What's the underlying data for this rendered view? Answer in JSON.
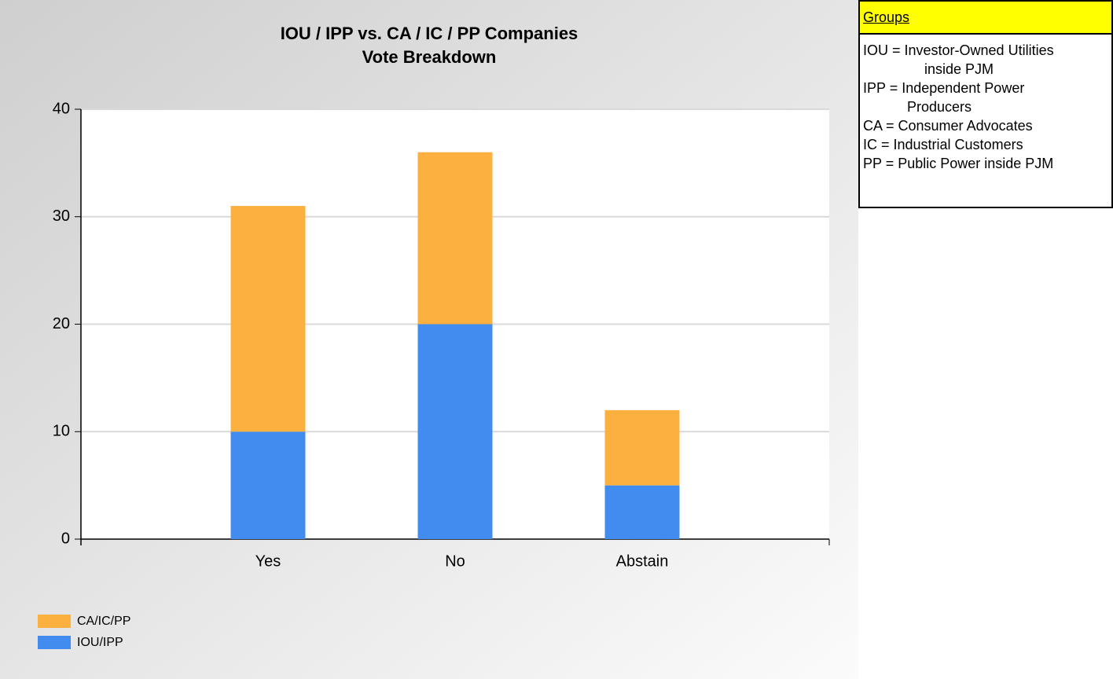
{
  "chart_data": {
    "type": "stacked_bar",
    "title": [
      "IOU / IPP vs. CA / IC / PP Companies",
      "Vote Breakdown"
    ],
    "categories": [
      "Yes",
      "No",
      "Abstain"
    ],
    "series": [
      {
        "name": "IOU/IPP",
        "color": "#428bef",
        "values": [
          10,
          20,
          5
        ]
      },
      {
        "name": "CA/IC/PP",
        "color": "#fbb040",
        "values": [
          21,
          16,
          7
        ]
      }
    ],
    "ylim": [
      0,
      40
    ],
    "yticks": [
      0,
      10,
      20,
      30,
      40
    ],
    "grid": true,
    "legend": "bottom-left"
  },
  "side_panel": {
    "title": "Groups",
    "lines": [
      "IOU = Investor-Owned Utilities",
      "inside PJM",
      "IPP = Independent Power",
      "Producers",
      "CA = Consumer Advocates",
      "IC = Industrial Customers",
      "PP = Public Power inside PJM"
    ]
  }
}
